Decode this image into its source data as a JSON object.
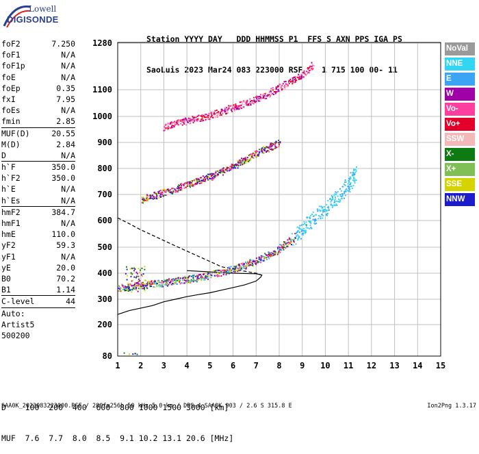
{
  "logo": {
    "line1": "Lowell",
    "line2": "DIGISONDE"
  },
  "header": {
    "row1": "Station YYYY DAY   DDD HHMMSS P1  FFS S AXN PPS IGA PS",
    "row2": "SaoLuis 2023 Mar24 083 223000 RSF    1 715 100 00- 11"
  },
  "params": [
    {
      "name": "foF2",
      "value": "7.250"
    },
    {
      "name": "foF1",
      "value": "N/A"
    },
    {
      "name": "foF1p",
      "value": "N/A"
    },
    {
      "name": "foE",
      "value": "N/A"
    },
    {
      "name": "foEp",
      "value": "0.35"
    },
    {
      "name": "fxI",
      "value": "7.95"
    },
    {
      "name": "foEs",
      "value": "N/A"
    },
    {
      "name": "fmin",
      "value": "2.85"
    },
    {
      "name": "MUF(D)",
      "value": "20.55",
      "sep": true
    },
    {
      "name": "M(D)",
      "value": "2.84"
    },
    {
      "name": "D",
      "value": "N/A"
    },
    {
      "name": "h`F",
      "value": "350.0",
      "sep": true
    },
    {
      "name": "h`F2",
      "value": "350.0"
    },
    {
      "name": "h`E",
      "value": "N/A"
    },
    {
      "name": "h`Es",
      "value": "N/A"
    },
    {
      "name": "hmF2",
      "value": "384.7",
      "sep": true
    },
    {
      "name": "hmF1",
      "value": "N/A"
    },
    {
      "name": "hmE",
      "value": "110.0"
    },
    {
      "name": "yF2",
      "value": "59.3"
    },
    {
      "name": "yF1",
      "value": "N/A"
    },
    {
      "name": "yE",
      "value": "20.0"
    },
    {
      "name": "B0",
      "value": "70.2"
    },
    {
      "name": "B1",
      "value": "1.14"
    },
    {
      "name": "C-level",
      "value": "44",
      "sep": true
    },
    {
      "name": "Auto:",
      "value": "",
      "sep": true
    },
    {
      "name": "Artist5",
      "value": ""
    },
    {
      "name": "500200",
      "value": ""
    }
  ],
  "legend": [
    {
      "label": "NoVal",
      "color": "#9a9a9a"
    },
    {
      "label": "NNE",
      "color": "#33d6f2"
    },
    {
      "label": "E",
      "color": "#3ba4f5"
    },
    {
      "label": "W",
      "color": "#a000a8"
    },
    {
      "label": "Vo-",
      "color": "#ff3fa0"
    },
    {
      "label": "Vo+",
      "color": "#e3002a"
    },
    {
      "label": "SSW",
      "color": "#f5b8b8"
    },
    {
      "label": "X-",
      "color": "#0d7a12"
    },
    {
      "label": "X+",
      "color": "#7fbf55"
    },
    {
      "label": "SSE",
      "color": "#d4d400"
    },
    {
      "label": "NNW",
      "color": "#1c1ccc"
    }
  ],
  "muf_table": {
    "row1": "D    100  200  400  600  800 1000 1500 3000 [km]",
    "row2": "MUF  7.6  7.7  8.0  8.5  9.1 10.2 13.1 20.6 [MHz]"
  },
  "footer": {
    "left": "SAA0K_2023083223000.RSF / 280fx256h 50 kHz 5.0 km / DPS-4 SAA0K 903 / 2.6 S 315.8 E",
    "right": "Ion2Png 1.3.17"
  },
  "chart_data": {
    "type": "scatter",
    "x_ticks": [
      1,
      2,
      3,
      4,
      5,
      6,
      7,
      8,
      9,
      10,
      11,
      12,
      13,
      14,
      15
    ],
    "y_ticks": [
      80,
      200,
      300,
      400,
      500,
      600,
      700,
      800,
      900,
      1000,
      1100,
      1280
    ],
    "xlim": [
      1,
      15
    ],
    "ylim": [
      80,
      1280
    ],
    "grid": true,
    "traces": [
      {
        "name": "F2 O-trace",
        "x": [
          1.0,
          1.5,
          2.0,
          2.5,
          3.0,
          3.5,
          4.0,
          4.5,
          5.0,
          5.5,
          6.0,
          6.5,
          7.0,
          7.5,
          8.0,
          8.5,
          9.0,
          9.5,
          10.0,
          10.5,
          11.0,
          11.3
        ],
        "y": [
          345,
          350,
          355,
          360,
          365,
          372,
          378,
          385,
          395,
          405,
          418,
          432,
          450,
          470,
          495,
          530,
          570,
          610,
          650,
          690,
          740,
          790
        ]
      },
      {
        "name": "F2 2-hop",
        "x": [
          2.0,
          2.5,
          3.0,
          3.5,
          4.0,
          4.5,
          5.0,
          5.5,
          6.0,
          6.5,
          7.0,
          7.5,
          8.0
        ],
        "y": [
          680,
          695,
          710,
          722,
          738,
          755,
          770,
          790,
          810,
          835,
          860,
          880,
          900
        ]
      },
      {
        "name": "F2 3-hop",
        "x": [
          3.0,
          3.5,
          4.0,
          4.5,
          5.0,
          5.5,
          6.0,
          6.5,
          7.0,
          7.5,
          8.0,
          8.5,
          9.0,
          9.5
        ],
        "y": [
          960,
          975,
          985,
          995,
          1005,
          1020,
          1035,
          1050,
          1065,
          1085,
          1110,
          1135,
          1160,
          1200
        ]
      }
    ],
    "profile_solid": {
      "x": [
        1.0,
        1.5,
        2.0,
        2.5,
        3.0,
        3.5,
        4.0,
        4.5,
        5.0,
        5.5,
        6.0,
        6.5,
        7.0,
        7.2,
        7.25,
        7.0,
        6.0,
        5.0,
        4.0
      ],
      "y": [
        240,
        255,
        265,
        275,
        290,
        300,
        310,
        318,
        325,
        335,
        345,
        355,
        370,
        385,
        393,
        398,
        400,
        405,
        410
      ]
    },
    "profile_dashed": {
      "x": [
        1.0,
        1.5,
        2.0,
        2.5,
        3.0,
        3.5,
        4.0,
        4.5,
        5.0,
        5.5,
        6.0,
        6.5,
        7.0,
        7.25
      ],
      "y": [
        610,
        588,
        565,
        545,
        525,
        505,
        485,
        465,
        445,
        425,
        415,
        408,
        400,
        393
      ]
    }
  }
}
